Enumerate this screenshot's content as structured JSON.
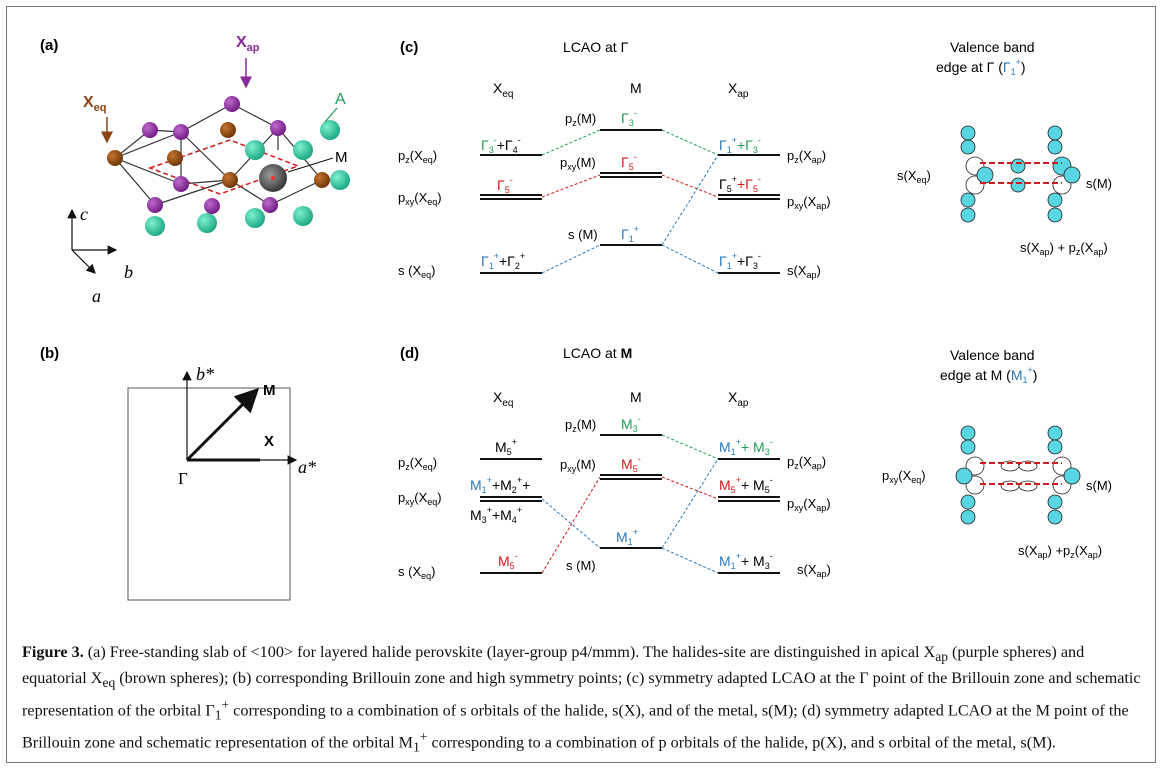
{
  "panel_a": {
    "label": "(a)",
    "x_ap": "X",
    "x_ap_sub": "ap",
    "x_eq": "X",
    "x_eq_sub": "eq",
    "site_a": "A",
    "site_m": "M",
    "axis_c": "c",
    "axis_b": "b",
    "axis_a": "a"
  },
  "panel_b": {
    "label": "(b)",
    "b_star": "b*",
    "a_star": "a*",
    "pt_m": "M",
    "pt_x": "X",
    "pt_gamma": "Γ"
  },
  "panel_c": {
    "label": "(c)",
    "title": "LCAO at Γ",
    "col_xeq": "X",
    "col_xeq_sub": "eq",
    "col_m": "M",
    "col_xap": "X",
    "col_xap_sub": "ap",
    "left": {
      "pz": "p",
      "pz_sub": "z",
      "pz_arg": "(X",
      "pz_arg_sub": "eq",
      "pz_close": ")",
      "pxy": "p",
      "pxy_sub": "xy",
      "pxy_arg": "(X",
      "pxy_arg_sub": "eq",
      "pxy_close": ")",
      "s": "s (X",
      "s_sub": "eq",
      "s_close": ")",
      "pz_sym_a": "Γ",
      "pz_sym_a_sub": "3",
      "pz_sym_a_sup": "-",
      "pz_sym_b": "+Γ",
      "pz_sym_b_sub": "4",
      "pz_sym_b_sup": "-",
      "pxy_sym": "Γ",
      "pxy_sym_sub": "5",
      "pxy_sym_sup": "-",
      "s_sym_a": "Γ",
      "s_sym_a_sub": "1",
      "s_sym_a_sup": "+",
      "s_sym_b": "+Γ",
      "s_sym_b_sub": "2",
      "s_sym_b_sup": "+"
    },
    "middle": {
      "pz": "p",
      "pz_sub": "z",
      "pz_arg": "(M)",
      "pxy": "p",
      "pxy_sub": "xy",
      "pxy_arg": "(M)",
      "s": "s (M)",
      "pz_sym": "Γ",
      "pz_sym_sub": "3",
      "pz_sym_sup": "-",
      "pxy_sym": "Γ",
      "pxy_sym_sub": "5",
      "pxy_sym_sup": "-",
      "s_sym": "Γ",
      "s_sym_sub": "1",
      "s_sym_sup": "+"
    },
    "right": {
      "pz": "p",
      "pz_sub": "z",
      "pz_arg": "(X",
      "pz_arg_sub": "ap",
      "pz_close": ")",
      "pxy": "p",
      "pxy_sub": "xy",
      "pxy_arg": "(X",
      "pxy_arg_sub": "ap",
      "pxy_close": ")",
      "s": "s(X",
      "s_sub": "ap",
      "s_close": ")",
      "pz_sym_a": "Γ",
      "pz_sym_a_sub": "1",
      "pz_sym_a_sup": "+",
      "pz_sym_b": "+Γ",
      "pz_sym_b_sub": "3",
      "pz_sym_b_sup": "-",
      "pxy_sym_a": "Γ",
      "pxy_sym_a_sub": "5",
      "pxy_sym_a_sup": "+",
      "pxy_sym_b": "+Γ",
      "pxy_sym_b_sub": "5",
      "pxy_sym_b_sup": "-",
      "s_sym_a": "Γ",
      "s_sym_a_sub": "1",
      "s_sym_a_sup": "+",
      "s_sym_b": "+Γ",
      "s_sym_b_sub": "3",
      "s_sym_b_sup": "-"
    },
    "vb_title_1": "Valence band",
    "vb_title_2": "edge at Γ (",
    "vb_sym": "Γ",
    "vb_sym_sub": "1",
    "vb_sym_sup": "+",
    "vb_close": ")",
    "orb_left": "s(X",
    "orb_left_sub": "eq",
    "orb_left_close": ")",
    "orb_right": "s(M)",
    "orb_bottom": "s(X",
    "orb_bottom_sub": "ap",
    "orb_bottom_mid": ") + p",
    "orb_bottom_sub2": "z",
    "orb_bottom_arg": "(X",
    "orb_bottom_sub3": "ap",
    "orb_bottom_close": ")"
  },
  "panel_d": {
    "label": "(d)",
    "title": "LCAO at ",
    "title_bold": "M",
    "col_xeq": "X",
    "col_xeq_sub": "eq",
    "col_m": "M",
    "col_xap": "X",
    "col_xap_sub": "ap",
    "left": {
      "pz": "p",
      "pz_sub": "z",
      "pz_arg": "(X",
      "pz_arg_sub": "eq",
      "pz_close": ")",
      "pxy": "p",
      "pxy_sub": "xy",
      "pxy_arg": "(X",
      "pxy_arg_sub": "eq",
      "pxy_close": ")",
      "s": "s (X",
      "s_sub": "eq",
      "s_close": ")",
      "pz_sym": "M",
      "pz_sym_sub": "5",
      "pz_sym_sup": "+",
      "pxy_sym_a": "M",
      "pxy_sym_a_sub": "1",
      "pxy_sym_a_sup": "+",
      "pxy_sym_b": "+M",
      "pxy_sym_b_sub": "2",
      "pxy_sym_b_sup": "+",
      "pxy_sym_b_tail": "+",
      "pxy_sym_c": "M",
      "pxy_sym_c_sub": "3",
      "pxy_sym_c_sup": "+",
      "pxy_sym_d": "+M",
      "pxy_sym_d_sub": "4",
      "pxy_sym_d_sup": "+",
      "s_sym": "M",
      "s_sym_sub": "5",
      "s_sym_sup": "-"
    },
    "middle": {
      "pz": "p",
      "pz_sub": "z",
      "pz_arg": "(M)",
      "pxy": "p",
      "pxy_sub": "xy",
      "pxy_arg": "(M)",
      "s": "s (M)",
      "pz_sym": "M",
      "pz_sym_sub": "3",
      "pz_sym_sup": "-",
      "pxy_sym": "M",
      "pxy_sym_sub": "5",
      "pxy_sym_sup": "-",
      "s_sym": "M",
      "s_sym_sub": "1",
      "s_sym_sup": "+"
    },
    "right": {
      "pz": "p",
      "pz_sub": "z",
      "pz_arg": "(X",
      "pz_arg_sub": "ap",
      "pz_close": ")",
      "pxy": "p",
      "pxy_sub": "xy",
      "pxy_arg": "(X",
      "pxy_arg_sub": "ap",
      "pxy_close": ")",
      "s": "s(X",
      "s_sub": "ap",
      "s_close": ")",
      "pz_sym_a": "M",
      "pz_sym_a_sub": "1",
      "pz_sym_a_sup": "+",
      "pz_sym_b": "+ M",
      "pz_sym_b_sub": "3",
      "pz_sym_b_sup": "-",
      "pxy_sym_a": "M",
      "pxy_sym_a_sub": "5",
      "pxy_sym_a_sup": "+",
      "pxy_sym_b": "+ M",
      "pxy_sym_b_sub": "5",
      "pxy_sym_b_sup": "-",
      "s_sym_a": "M",
      "s_sym_a_sub": "1",
      "s_sym_a_sup": "+",
      "s_sym_b": "+ M",
      "s_sym_b_sub": "3",
      "s_sym_b_sup": "-"
    },
    "vb_title_1": "Valence band",
    "vb_title_2": "edge at M (",
    "vb_sym": "M",
    "vb_sym_sub": "1",
    "vb_sym_sup": "+",
    "vb_close": ")",
    "orb_left": "p",
    "orb_left_sub": "xy",
    "orb_left_arg": "(X",
    "orb_left_sub2": "eq",
    "orb_left_close": ")",
    "orb_right": "s(M)",
    "orb_bottom": "s(X",
    "orb_bottom_sub": "ap",
    "orb_bottom_mid": ") +p",
    "orb_bottom_sub2": "z",
    "orb_bottom_arg": "(X",
    "orb_bottom_sub3": "ap",
    "orb_bottom_close": ")"
  },
  "caption": {
    "label": "Figure 3.",
    "t1": " (a) Free-standing slab of <100> for layered halide perovskite (layer-group p4/mmm). The halides-site are distinguished in apical X",
    "t1_sub": "ap",
    "t2": " (purple spheres) and equatorial X",
    "t2_sub": "eq",
    "t3": " (brown spheres); (b) corresponding Brillouin zone and high symmetry points; (c) symmetry adapted LCAO at the Γ point of the Brillouin zone and schematic representation of the orbital Γ",
    "t3_sub": "1",
    "t3_sup": "+",
    "t4": " corresponding to a combination of s orbitals of the halide, s(X), and of the metal, s(M); (d) symmetry adapted LCAO at the M point of the Brillouin zone and schematic representation of the orbital M",
    "t4_sub": "1",
    "t4_sup": "+",
    "t5": " corresponding to a combination of p orbitals of the halide, p(X), and s orbital of the metal, s(M)."
  },
  "colors": {
    "green": "#1f9e57",
    "red": "#d21a1a",
    "blue": "#2a7ab8",
    "purple": "#8a2a9a",
    "brown": "#8b4513",
    "teal": "#2fc2a3",
    "cyan_orbital": "#59d6e3",
    "metal": "#4a4a4a"
  }
}
